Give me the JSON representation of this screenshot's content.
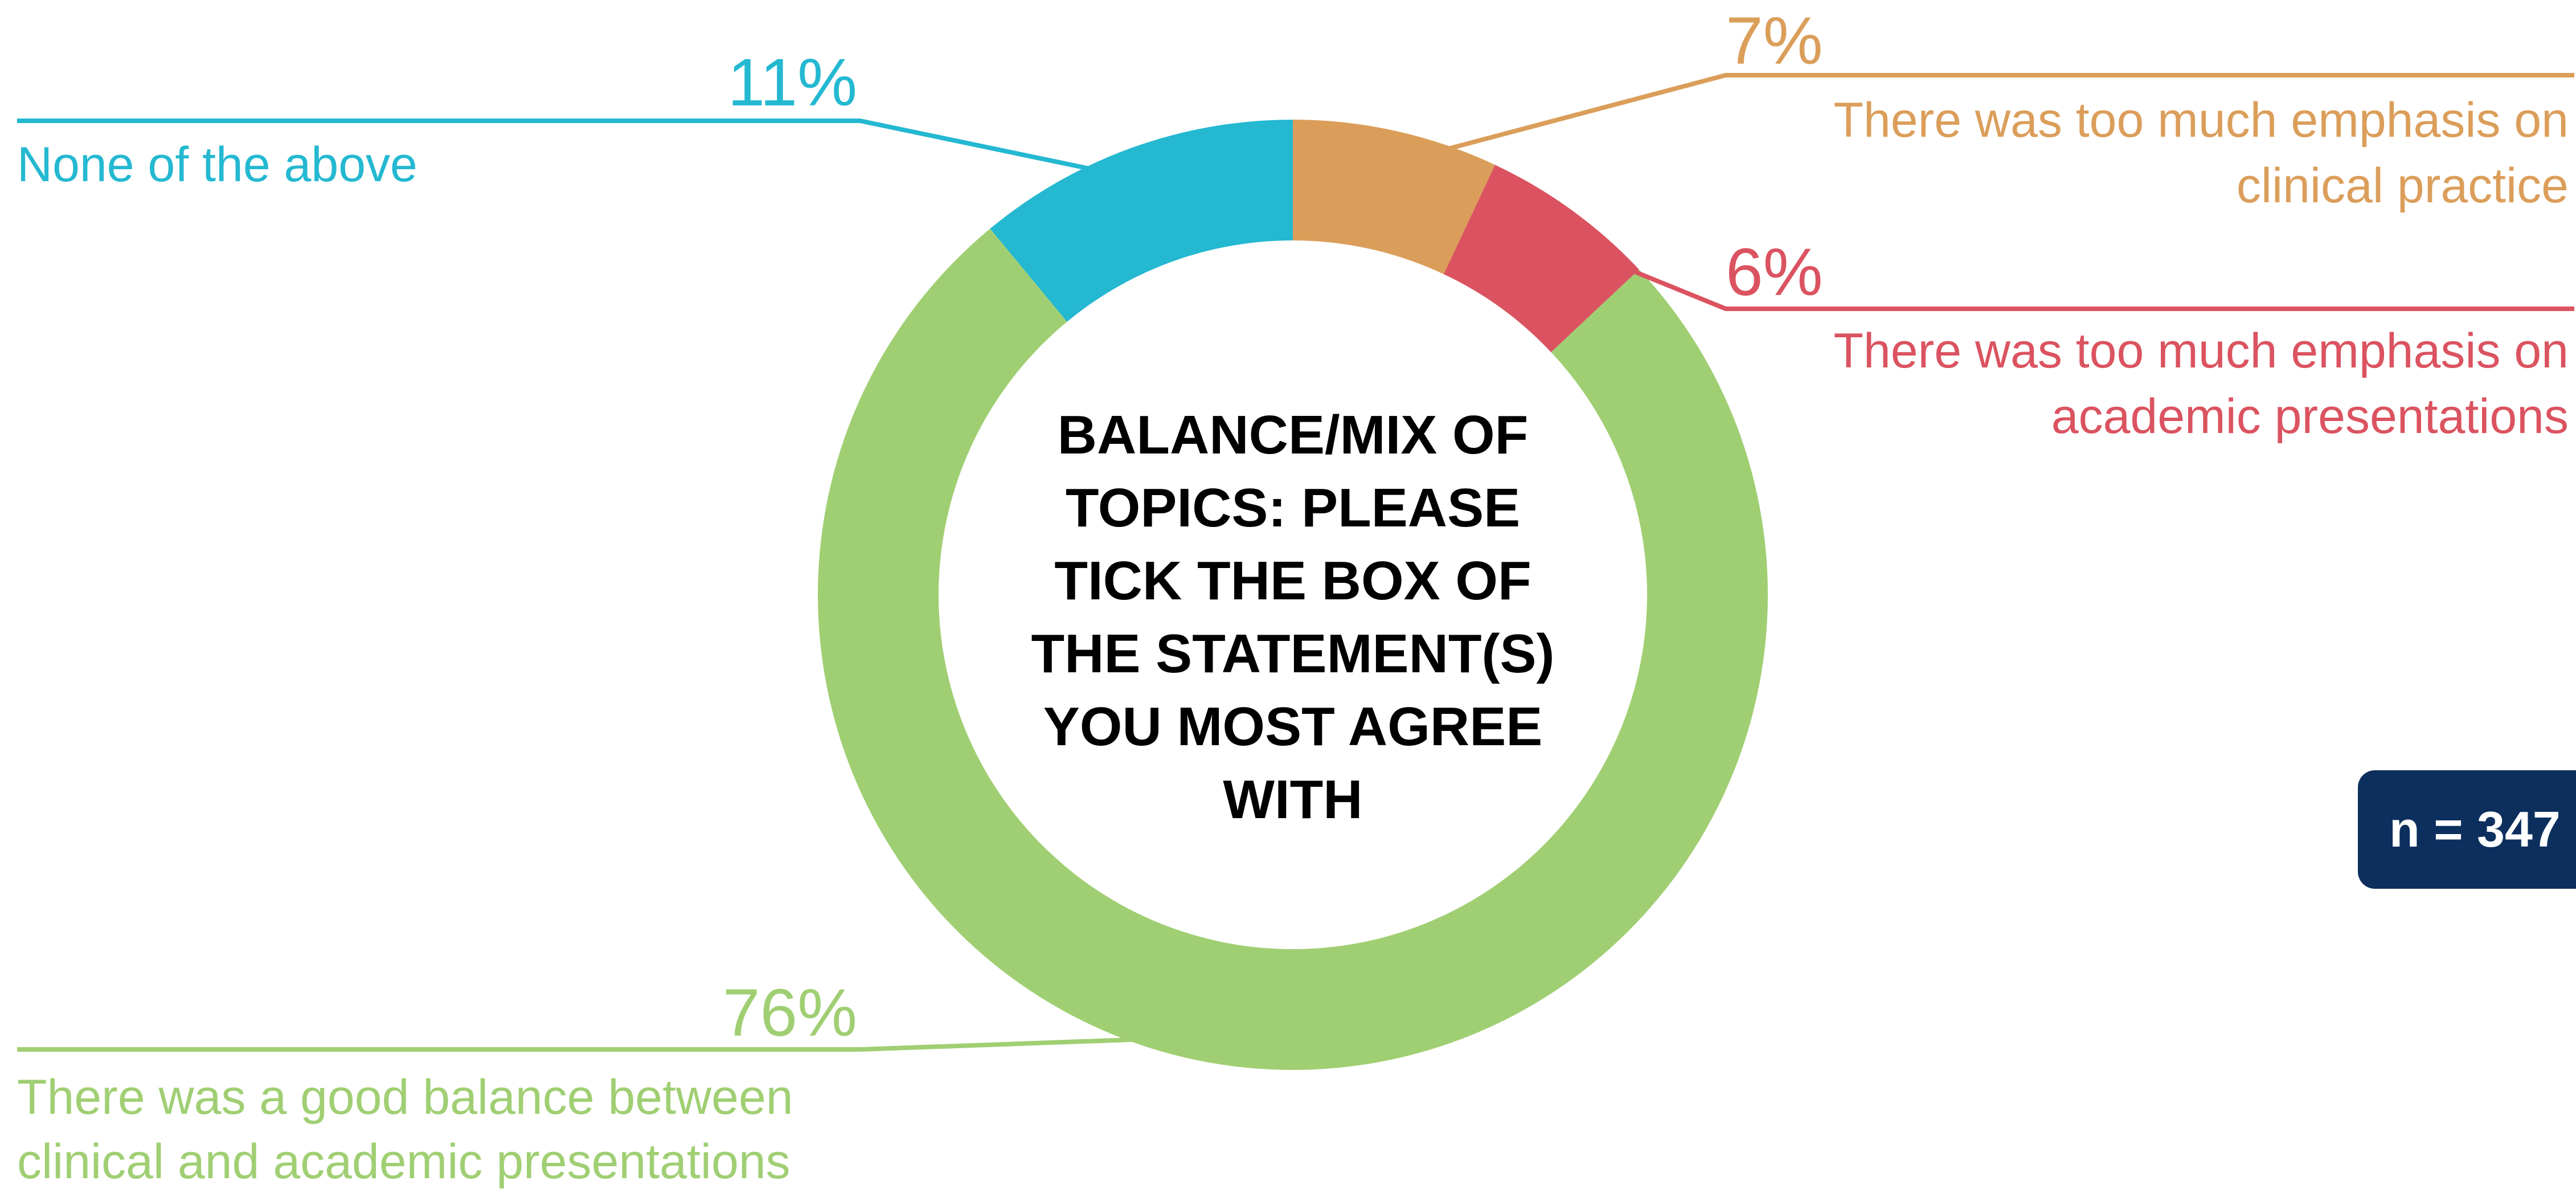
{
  "chart_data": {
    "type": "pie",
    "donut": true,
    "center_title_lines": [
      "BALANCE/MIX OF",
      "TOPICS: PLEASE",
      "TICK THE BOX OF",
      "THE STATEMENT(S)",
      "YOU MOST AGREE",
      "WITH"
    ],
    "legend": "none",
    "slices": [
      {
        "value_label": "7%",
        "value": 7,
        "label_lines": [
          "There was too much emphasis on",
          "clinical practice"
        ],
        "color": "#DB9E5A"
      },
      {
        "value_label": "6%",
        "value": 6,
        "label_lines": [
          "There was too much emphasis on",
          "academic presentations"
        ],
        "color": "#DB5360"
      },
      {
        "value_label": "76%",
        "value": 76,
        "label_lines": [
          "There was a good balance between",
          "clinical and academic presentations"
        ],
        "color": "#A0CF73"
      },
      {
        "value_label": "11%",
        "value": 11,
        "label_lines": [
          "None of the above"
        ],
        "color": "#24B8D1"
      }
    ]
  },
  "sample_size": "n = 347",
  "colors": {
    "badge_background": "#0D2F5E",
    "badge_text": "#FFFFFF",
    "title_text": "#000000"
  }
}
